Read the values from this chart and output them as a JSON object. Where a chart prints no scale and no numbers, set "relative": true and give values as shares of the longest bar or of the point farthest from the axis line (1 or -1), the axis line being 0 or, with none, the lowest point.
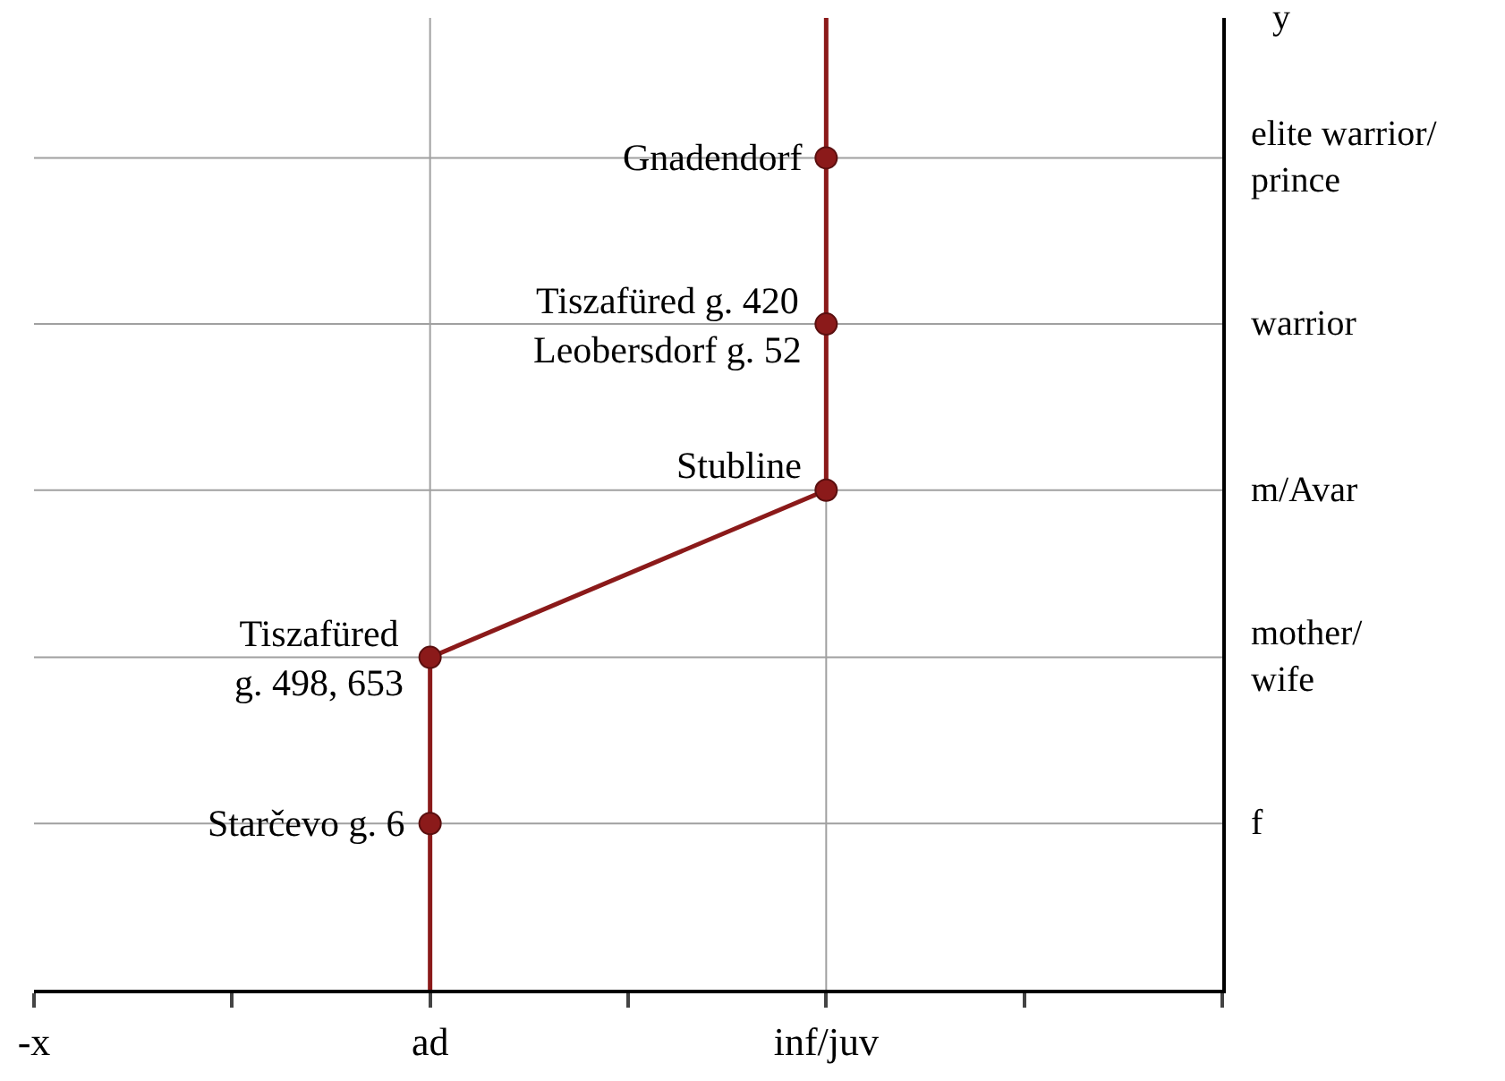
{
  "chart_data": {
    "type": "line",
    "ylabel": "y",
    "relative": true,
    "categories": [
      "-x",
      null,
      "ad",
      null,
      "inf/juv",
      null,
      null
    ],
    "grid": "x",
    "legend": false,
    "ref_lines": [
      {
        "axis": "y",
        "value": 0.171,
        "label": "f",
        "color": "#a0a0a0"
      },
      {
        "axis": "y",
        "value": 0.342,
        "label": "mother/\nwife",
        "color": "#a0a0a0"
      },
      {
        "axis": "y",
        "value": 0.514,
        "label": "m/Avar",
        "color": "#a0a0a0"
      },
      {
        "axis": "y",
        "value": 0.685,
        "label": "warrior",
        "color": "#a0a0a0"
      },
      {
        "axis": "y",
        "value": 0.856,
        "label": "elite warrior/\nprince",
        "color": "#a0a0a0"
      }
    ],
    "series": [
      {
        "color": "#8b1a1a",
        "marker": "none",
        "x": [
          "ad",
          "ad",
          "ad",
          "inf/juv",
          "inf/juv",
          "inf/juv",
          "inf/juv"
        ],
        "values": [
          0,
          0.171,
          0.342,
          0.514,
          0.685,
          0.856,
          1
        ]
      },
      {
        "type": "scatter",
        "color": "#8b1a1a",
        "marker": "circle",
        "x": [
          "ad",
          "ad",
          "inf/juv",
          "inf/juv",
          "inf/juv"
        ],
        "values": [
          0.171,
          0.342,
          0.514,
          0.685,
          0.856
        ]
      }
    ],
    "annotations": [
      {
        "text": "Gnadendorf",
        "x": "inf/juv",
        "y": 0.856
      },
      {
        "text": "Tiszafüred g. 420\nLeobersdorf g. 52",
        "x": "inf/juv",
        "y": 0.685
      },
      {
        "text": "Stubline",
        "x": "inf/juv",
        "y": 0.514
      },
      {
        "text": "Tiszafüred\ng. 498, 653",
        "x": "ad",
        "y": 0.342
      },
      {
        "text": "Starčevo g. 6",
        "x": "ad",
        "y": 0.171
      }
    ]
  }
}
